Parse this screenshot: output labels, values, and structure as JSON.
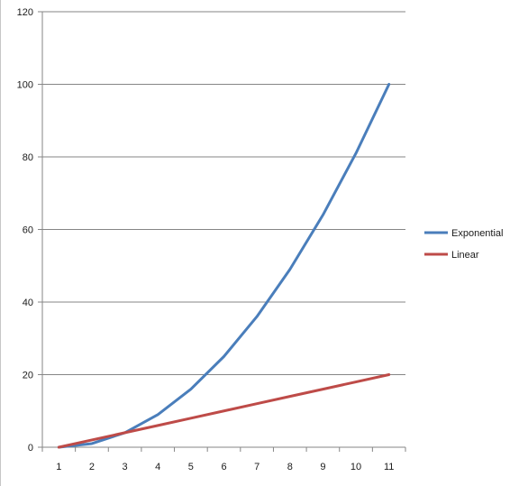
{
  "chart_data": {
    "type": "line",
    "title": "",
    "xlabel": "",
    "ylabel": "",
    "categories": [
      "1",
      "2",
      "3",
      "4",
      "5",
      "6",
      "7",
      "8",
      "9",
      "10",
      "11"
    ],
    "ylim": [
      0,
      120
    ],
    "y_ticks": [
      "0",
      "20",
      "40",
      "60",
      "80",
      "100",
      "120"
    ],
    "grid": "horizontal",
    "legend_position": "right",
    "series": [
      {
        "name": "Exponential",
        "color": "#4a7ebb",
        "values": [
          0,
          1,
          4,
          9,
          16,
          25,
          36,
          49,
          64,
          81,
          100
        ]
      },
      {
        "name": "Linear",
        "color": "#be4b48",
        "values": [
          0,
          2,
          4,
          6,
          8,
          10,
          12,
          14,
          16,
          18,
          20
        ]
      }
    ]
  }
}
